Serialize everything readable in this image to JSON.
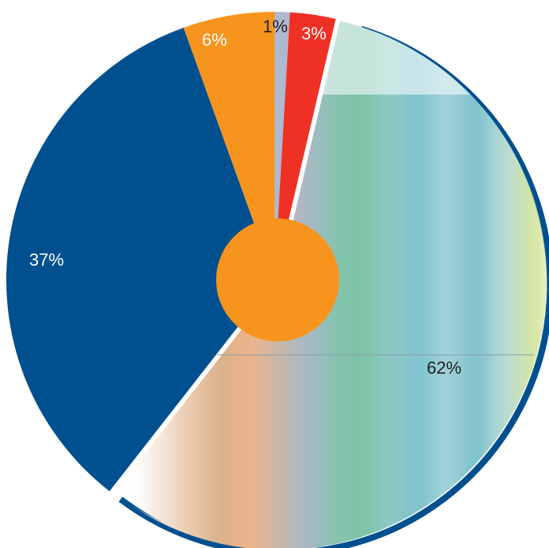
{
  "chart_data": {
    "type": "pie",
    "title": "",
    "slices": [
      {
        "label": "1%",
        "value": 1,
        "color": "#aeb8cf"
      },
      {
        "label": "3%",
        "value": 3,
        "color": "#ee3124"
      },
      {
        "label": "62%",
        "value": 62,
        "color": "#7fc8c4",
        "style": "blurred-multicolor-stripes"
      },
      {
        "label": "37%",
        "value": 37,
        "color": "#004f8f"
      },
      {
        "label": "6%",
        "value": 6,
        "color": "#f7941d"
      }
    ],
    "center_dot_color": "#f7941d",
    "rim_color": "#004f8f"
  }
}
